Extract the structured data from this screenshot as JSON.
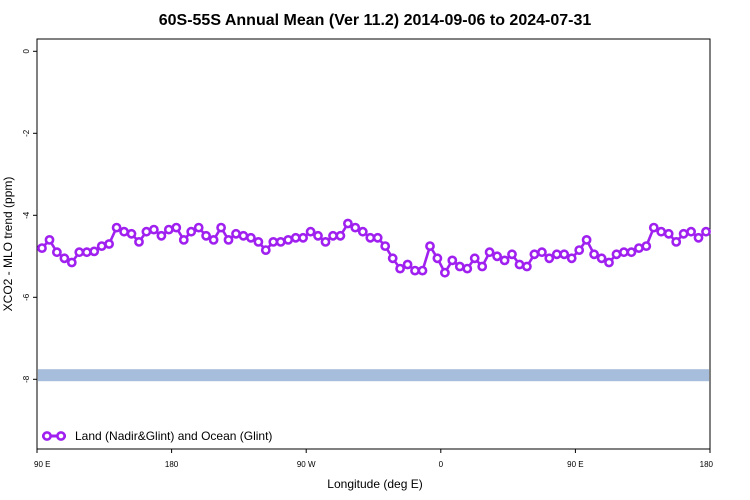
{
  "chart_data": {
    "type": "line",
    "title": "60S-55S Annual Mean (Ver 11.2)   2014-09-06 to 2024-07-31",
    "xlabel": "Longitude (deg E)",
    "ylabel": "XCO2 - MLO trend (ppm)",
    "x_ticks": [
      "90 E",
      "180",
      "90 W",
      "0",
      "90 E",
      "180"
    ],
    "y_ticks": [
      "0",
      "-2",
      "-4",
      "-6",
      "-8"
    ],
    "ylim": [
      -9.7,
      0.3
    ],
    "grid": false,
    "legend_position": "bottom-left",
    "series": [
      {
        "name": "Land (Nadir&Glint) and Ocean (Glint)",
        "color": "#a020f0",
        "values": [
          -4.8,
          -4.6,
          -4.9,
          -5.05,
          -5.15,
          -4.9,
          -4.9,
          -4.88,
          -4.75,
          -4.7,
          -4.3,
          -4.4,
          -4.45,
          -4.65,
          -4.4,
          -4.35,
          -4.5,
          -4.35,
          -4.3,
          -4.6,
          -4.4,
          -4.3,
          -4.5,
          -4.6,
          -4.3,
          -4.6,
          -4.45,
          -4.5,
          -4.55,
          -4.65,
          -4.85,
          -4.65,
          -4.65,
          -4.6,
          -4.55,
          -4.55,
          -4.4,
          -4.5,
          -4.65,
          -4.5,
          -4.5,
          -4.2,
          -4.3,
          -4.4,
          -4.55,
          -4.55,
          -4.75,
          -5.05,
          -5.3,
          -5.2,
          -5.35,
          -5.35,
          -4.75,
          -5.05,
          -5.4,
          -5.1,
          -5.25,
          -5.3,
          -5.05,
          -5.25,
          -4.9,
          -5.0,
          -5.1,
          -4.95,
          -5.2,
          -5.25,
          -4.95,
          -4.9,
          -5.05,
          -4.95,
          -4.95,
          -5.05,
          -4.85,
          -4.6,
          -4.95,
          -5.05,
          -5.15,
          -4.95,
          -4.9,
          -4.9,
          -4.8,
          -4.75,
          -4.3,
          -4.4,
          -4.45,
          -4.65,
          -4.45,
          -4.4,
          -4.55,
          -4.4
        ]
      }
    ],
    "band": {
      "y_center": -7.9,
      "color": "#a6bddb"
    }
  }
}
